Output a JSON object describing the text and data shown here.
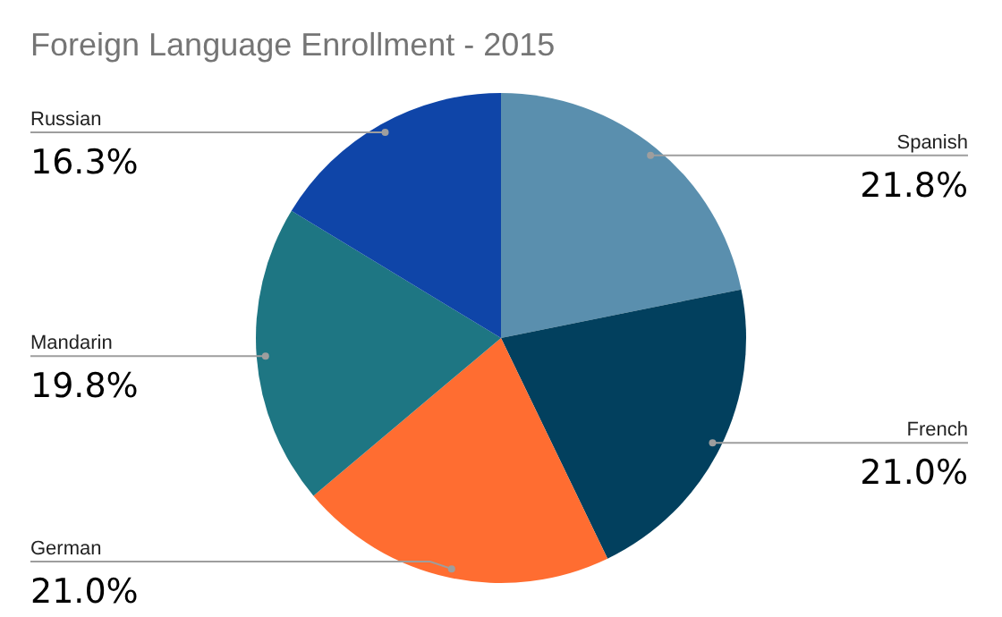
{
  "chart_data": {
    "type": "pie",
    "title": "Foreign Language Enrollment - 2015",
    "categories": [
      "Spanish",
      "French",
      "German",
      "Mandarin",
      "Russian"
    ],
    "values": [
      21.8,
      21.0,
      21.0,
      19.8,
      16.3
    ],
    "colors": [
      "#5a8fae",
      "#02405e",
      "#ff6d31",
      "#1e7683",
      "#0f45a8"
    ],
    "value_labels": [
      "21.8%",
      "21.0%",
      "21.0%",
      "19.8%",
      "16.3%"
    ]
  }
}
